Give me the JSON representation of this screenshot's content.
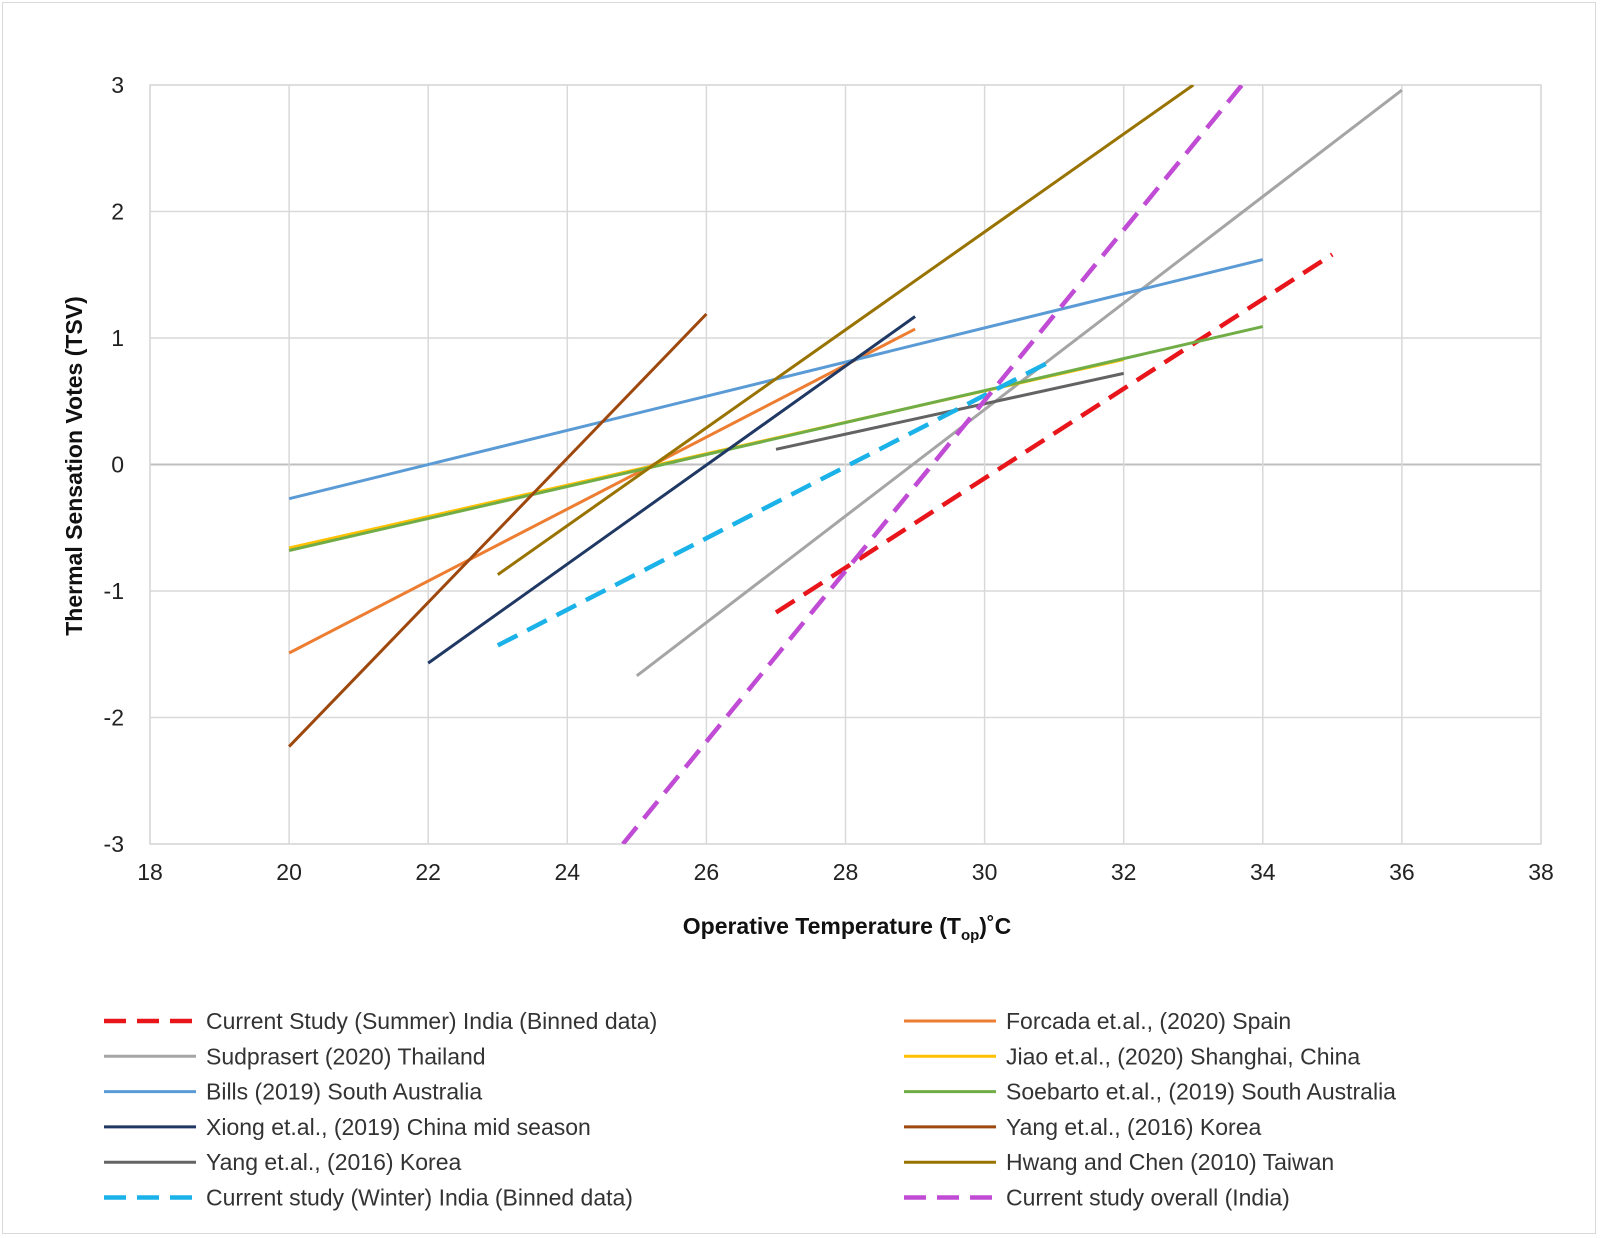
{
  "chart_data": {
    "type": "line",
    "xlabel_main": "Operative Temperature (T",
    "xlabel_sub": "op",
    "xlabel_end": ")˚C",
    "ylabel": "Thermal Sensation Votes (TSV)",
    "xlim": [
      18,
      38
    ],
    "ylim": [
      -3,
      3
    ],
    "x_ticks": [
      18,
      20,
      22,
      24,
      26,
      28,
      30,
      32,
      34,
      36,
      38
    ],
    "y_ticks": [
      -3,
      -2,
      -1,
      0,
      1,
      2,
      3
    ],
    "grid": true,
    "legend_position": "bottom",
    "series": [
      {
        "name": "Current Study (Summer) India (Binned data)",
        "color": "#e8161b",
        "dash": true,
        "points": [
          [
            27,
            -1.17
          ],
          [
            35,
            1.66
          ]
        ]
      },
      {
        "name": "Forcada et.al., (2020) Spain",
        "color": "#ed7d31",
        "dash": false,
        "points": [
          [
            20,
            -1.49
          ],
          [
            29,
            1.07
          ]
        ]
      },
      {
        "name": "Sudprasert (2020) Thailand",
        "color": "#a5a5a5",
        "dash": false,
        "points": [
          [
            25,
            -1.67
          ],
          [
            36,
            2.96
          ]
        ]
      },
      {
        "name": "Jiao et.al., (2020) Shanghai, China",
        "color": "#ffc000",
        "dash": false,
        "points": [
          [
            20,
            -0.66
          ],
          [
            32,
            0.83
          ]
        ]
      },
      {
        "name": "Bills (2019) South Australia",
        "color": "#5b9bd5",
        "dash": false,
        "points": [
          [
            20,
            -0.27
          ],
          [
            34,
            1.62
          ]
        ]
      },
      {
        "name": "Soebarto et.al., (2019) South Australia",
        "color": "#70ad47",
        "dash": false,
        "points": [
          [
            20,
            -0.68
          ],
          [
            34,
            1.09
          ]
        ]
      },
      {
        "name": "Xiong et.al., (2019) China mid season",
        "color": "#203864",
        "dash": false,
        "points": [
          [
            22,
            -1.57
          ],
          [
            29,
            1.17
          ]
        ]
      },
      {
        "name": "Yang et.al., (2016) Korea",
        "color": "#9e480e",
        "dash": false,
        "points": [
          [
            20,
            -2.23
          ],
          [
            26,
            1.19
          ]
        ]
      },
      {
        "name": "Yang et.al., (2016) Korea",
        "color": "#636363",
        "dash": false,
        "points": [
          [
            27,
            0.12
          ],
          [
            32,
            0.72
          ]
        ]
      },
      {
        "name": "Hwang and Chen (2010) Taiwan",
        "color": "#997300",
        "dash": false,
        "points": [
          [
            23,
            -0.87
          ],
          [
            33,
            3.0
          ]
        ]
      },
      {
        "name": "Current study (Winter) India (Binned data)",
        "color": "#1ab2e8",
        "dash": true,
        "points": [
          [
            23,
            -1.43
          ],
          [
            31,
            0.83
          ]
        ]
      },
      {
        "name": "Current study overall (India)",
        "color": "#c04bd4",
        "dash": true,
        "points": [
          [
            24.8,
            -3.0
          ],
          [
            33.7,
            3.0
          ]
        ]
      }
    ]
  }
}
